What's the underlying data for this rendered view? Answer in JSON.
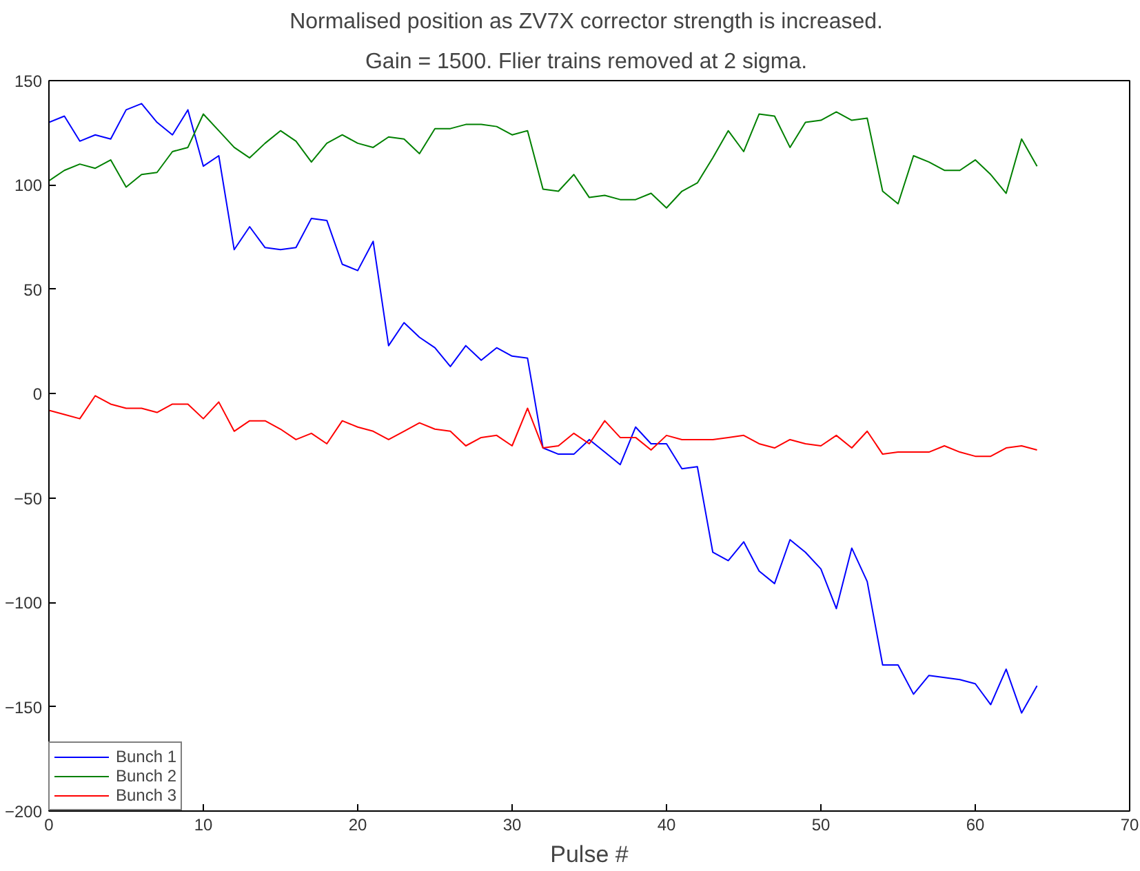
{
  "chart_data": {
    "type": "line",
    "title": "Normalised position as ZV7X corrector strength  is increased.",
    "subtitle": "Gain = 1500.  Flier trains removed at 2 sigma.",
    "xlabel": "Pulse #",
    "x": [
      0,
      1,
      2,
      3,
      4,
      5,
      6,
      7,
      8,
      9,
      10,
      11,
      12,
      13,
      14,
      15,
      16,
      17,
      18,
      19,
      20,
      21,
      22,
      23,
      24,
      25,
      26,
      27,
      28,
      29,
      30,
      31,
      32,
      33,
      34,
      35,
      36,
      37,
      38,
      39,
      40,
      41,
      42,
      43,
      44,
      45,
      46,
      47,
      48,
      49,
      50,
      51,
      52,
      53,
      54,
      55,
      56,
      57,
      58,
      59,
      60,
      61,
      62,
      63,
      64
    ],
    "series": [
      {
        "name": "Bunch 1",
        "color": "#0000ff",
        "values": [
          130,
          133,
          121,
          124,
          122,
          136,
          139,
          130,
          124,
          136,
          109,
          114,
          69,
          80,
          70,
          69,
          70,
          84,
          83,
          62,
          59,
          73,
          23,
          34,
          27,
          22,
          13,
          23,
          16,
          22,
          18,
          17,
          -26,
          -29,
          -29,
          -22,
          -28,
          -34,
          -16,
          -24,
          -24,
          -36,
          -35,
          -76,
          -80,
          -71,
          -85,
          -91,
          -70,
          -76,
          -84,
          -103,
          -74,
          -90,
          -130,
          -130,
          -144,
          -135,
          -136,
          -137,
          -139,
          -149,
          -132,
          -153,
          -140
        ]
      },
      {
        "name": "Bunch 2",
        "color": "#008000",
        "values": [
          102,
          107,
          110,
          108,
          112,
          99,
          105,
          106,
          116,
          118,
          134,
          126,
          118,
          113,
          120,
          126,
          121,
          111,
          120,
          124,
          120,
          118,
          123,
          122,
          115,
          127,
          127,
          129,
          129,
          128,
          124,
          126,
          98,
          97,
          105,
          94,
          95,
          93,
          93,
          96,
          89,
          97,
          101,
          113,
          126,
          116,
          134,
          133,
          118,
          130,
          131,
          135,
          131,
          132,
          97,
          91,
          114,
          111,
          107,
          107,
          112,
          105,
          96,
          122,
          109
        ]
      },
      {
        "name": "Bunch 3",
        "color": "#ff0000",
        "values": [
          -8,
          -10,
          -12,
          -1,
          -5,
          -7,
          -7,
          -9,
          -5,
          -5,
          -12,
          -4,
          -18,
          -13,
          -13,
          -17,
          -22,
          -19,
          -24,
          -13,
          -16,
          -18,
          -22,
          -18,
          -14,
          -17,
          -18,
          -25,
          -21,
          -20,
          -25,
          -7,
          -26,
          -25,
          -19,
          -24,
          -13,
          -21,
          -21,
          -27,
          -20,
          -22,
          -22,
          -22,
          -21,
          -20,
          -24,
          -26,
          -22,
          -24,
          -25,
          -20,
          -26,
          -18,
          -29,
          -28,
          -28,
          -28,
          -25,
          -28,
          -30,
          -30,
          -26,
          -25,
          -27
        ]
      }
    ],
    "xlim": [
      0,
      70
    ],
    "xticks": [
      0,
      10,
      20,
      30,
      40,
      50,
      60,
      70
    ],
    "ylim": [
      -200,
      150
    ],
    "yticks": [
      150,
      100,
      50,
      0,
      -50,
      -100,
      -150,
      -200
    ],
    "grid": false,
    "legend": "bottom left",
    "marker": "none",
    "line_style": "solid"
  }
}
